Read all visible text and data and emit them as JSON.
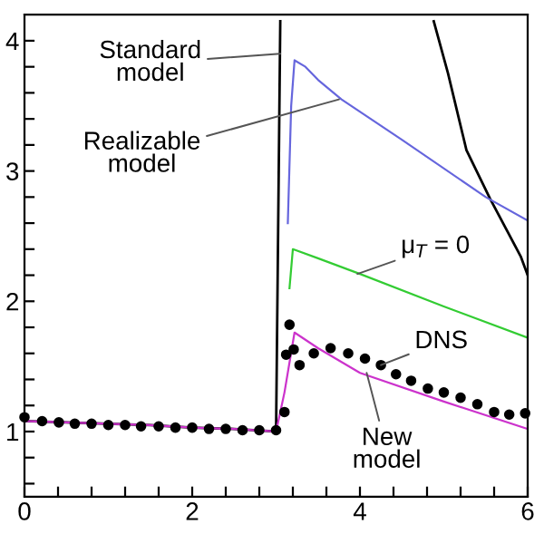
{
  "chart_data": {
    "type": "line",
    "xlim": [
      0,
      6
    ],
    "ylim": [
      0.5,
      4.2
    ],
    "xticks": [
      0,
      {
        "value": 0.4,
        "label": null
      },
      {
        "value": 0.8,
        "label": null
      },
      {
        "value": 1.2,
        "label": null
      },
      {
        "value": 1.6,
        "label": null
      },
      2,
      {
        "value": 2.4,
        "label": null
      },
      {
        "value": 2.8,
        "label": null
      },
      {
        "value": 3.2,
        "label": null
      },
      {
        "value": 3.6,
        "label": null
      },
      4,
      {
        "value": 4.4,
        "label": null
      },
      {
        "value": 4.8,
        "label": null
      },
      {
        "value": 5.2,
        "label": null
      },
      {
        "value": 5.6,
        "label": null
      },
      6
    ],
    "yticks": [
      {
        "value": 0.6,
        "label": null
      },
      {
        "value": 0.8,
        "label": null
      },
      1,
      {
        "value": 1.2,
        "label": null
      },
      {
        "value": 1.4,
        "label": null
      },
      {
        "value": 1.6,
        "label": null
      },
      {
        "value": 1.8,
        "label": null
      },
      2,
      {
        "value": 2.2,
        "label": null
      },
      {
        "value": 2.4,
        "label": null
      },
      {
        "value": 2.6,
        "label": null
      },
      {
        "value": 2.8,
        "label": null
      },
      3,
      {
        "value": 3.2,
        "label": null
      },
      {
        "value": 3.4,
        "label": null
      },
      {
        "value": 3.6,
        "label": null
      },
      {
        "value": 3.8,
        "label": null
      },
      4
    ],
    "grid": false,
    "legend": false,
    "series": [
      {
        "color": "#000000",
        "x": [
          0,
          0.5,
          1,
          1.5,
          2,
          2.5,
          3.0,
          3.05,
          3.06,
          4.88,
          5.05,
          5.27,
          5.55,
          5.92,
          6
        ],
        "values": [
          1.08,
          1.07,
          1.06,
          1.05,
          1.03,
          1.02,
          1.0,
          4.15,
          null,
          4.15,
          3.75,
          3.16,
          2.79,
          2.34,
          2.2
        ]
      },
      {
        "color": "#6666dd",
        "x": [
          3.14,
          3.18,
          3.22,
          3.35,
          3.5,
          3.78,
          4.5,
          5.5,
          6
        ],
        "values": [
          2.6,
          3.5,
          3.85,
          3.8,
          3.7,
          3.55,
          3.24,
          2.8,
          2.62
        ]
      },
      {
        "color": "#33cc33",
        "x": [
          3.16,
          3.2,
          3.5,
          4,
          5,
          6
        ],
        "values": [
          2.1,
          2.4,
          2.33,
          2.21,
          1.96,
          1.72
        ]
      },
      {
        "color": "#cc33cc",
        "x": [
          0,
          0.5,
          1,
          1.5,
          2,
          2.5,
          3.0,
          3.1,
          3.22,
          3.5,
          4,
          5,
          6
        ],
        "values": [
          1.08,
          1.07,
          1.06,
          1.05,
          1.03,
          1.02,
          1.0,
          1.3,
          1.76,
          1.64,
          1.45,
          1.23,
          1.02
        ]
      },
      {
        "type": "scatter",
        "marker": "circle",
        "color": "#000000",
        "x": [
          0.0,
          0.21,
          0.41,
          0.6,
          0.8,
          1.0,
          1.2,
          1.39,
          1.6,
          1.8,
          2.0,
          2.2,
          2.4,
          2.6,
          2.8,
          3.0,
          3.1,
          3.12,
          3.16,
          3.21,
          3.28,
          3.45,
          3.65,
          3.86,
          4.06,
          4.25,
          4.43,
          4.61,
          4.81,
          5.0,
          5.2,
          5.4,
          5.6,
          5.78,
          5.97
        ],
        "values": [
          1.11,
          1.08,
          1.07,
          1.06,
          1.06,
          1.05,
          1.05,
          1.04,
          1.04,
          1.03,
          1.03,
          1.02,
          1.02,
          1.01,
          1.01,
          1.01,
          1.15,
          1.59,
          1.82,
          1.63,
          1.51,
          1.6,
          1.64,
          1.6,
          1.56,
          1.51,
          1.44,
          1.39,
          1.33,
          1.3,
          1.26,
          1.21,
          1.15,
          1.13,
          1.14
        ]
      }
    ],
    "annotations": [
      {
        "text": "Standard\nmodel",
        "x": 3.05,
        "y": 3.9
      },
      {
        "text": "Realizable\nmodel",
        "x": 3.75,
        "y": 3.55
      },
      {
        "text": "μ$_{T}$ = 0",
        "x": 3.97,
        "y": 2.21
      },
      {
        "text": "DNS",
        "x": 4.25,
        "y": 1.51
      },
      {
        "text": "New\nmodel",
        "x": 4.08,
        "y": 1.45
      }
    ]
  }
}
